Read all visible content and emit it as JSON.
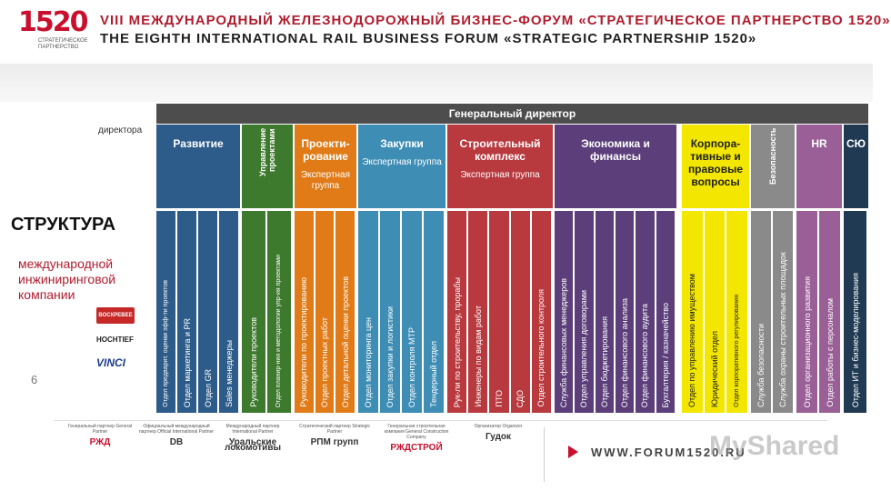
{
  "header": {
    "logo_number": "1520",
    "logo_text": "СТРАТЕГИЧЕСКОЕ ПАРТНЕРСТВО",
    "title_ru": "VIII МЕЖДУНАРОДНЫЙ ЖЕЛЕЗНОДОРОЖНЫЙ БИЗНЕС-ФОРУМ «СТРАТЕГИЧЕСКОЕ ПАРТНЕРСТВО 1520»",
    "title_en": "THE EIGHTH INTERNATIONAL RAIL BUSINESS FORUM «STRATEGIC PARTNERSHIP 1520»"
  },
  "slide": {
    "general_director": "Генеральный директор",
    "directora": "директора",
    "title": "СТРУКТУРА",
    "subtitle": "международной инжиниринговой компании",
    "page_number": "6",
    "company_logos": [
      "ВОСКРЕВЕЕ",
      "HOCHTIEF",
      "VINCI"
    ]
  },
  "departments": [
    {
      "name": "Развитие",
      "sub": "",
      "color": "#2e5c8a",
      "vertical": false,
      "text_color": "#ffffff"
    },
    {
      "name": "Управление проектами",
      "sub": "",
      "color": "#3e7a2e",
      "vertical": true,
      "text_color": "#ffffff"
    },
    {
      "name": "Проекти-рование",
      "sub": "Экспертная группа",
      "color": "#e07b18",
      "vertical": false,
      "text_color": "#ffffff"
    },
    {
      "name": "Закупки",
      "sub": "Экспертная группа",
      "color": "#3d8db5",
      "vertical": false,
      "text_color": "#ffffff"
    },
    {
      "name": "Строительный комплекс",
      "sub": "Экспертная группа",
      "color": "#b83a3f",
      "vertical": false,
      "text_color": "#ffffff"
    },
    {
      "name": "Экономика и финансы",
      "sub": "",
      "color": "#5b3e7a",
      "vertical": false,
      "text_color": "#ffffff"
    },
    {
      "name": "Корпора-тивные и правовые вопросы",
      "sub": "",
      "color": "#f3e600",
      "vertical": false,
      "text_color": "#222222"
    },
    {
      "name": "Безопасность",
      "sub": "",
      "color": "#8a8a8a",
      "vertical": true,
      "text_color": "#ffffff"
    },
    {
      "name": "HR",
      "sub": "",
      "color": "#9a5f97",
      "vertical": false,
      "text_color": "#ffffff"
    },
    {
      "name": "СЮ",
      "sub": "",
      "color": "#1f3a52",
      "vertical": false,
      "text_color": "#ffffff"
    }
  ],
  "units": [
    {
      "label": "Отдел предварит. оценки эфф-ти проектов",
      "color": "#2e5c8a",
      "small": true
    },
    {
      "label": "Отдел маркетинга и PR",
      "color": "#2e5c8a"
    },
    {
      "label": "Отдел GR",
      "color": "#2e5c8a"
    },
    {
      "label": "Sales менеджеры",
      "color": "#2e5c8a"
    },
    {
      "label": "Руководители проектов",
      "color": "#3e7a2e"
    },
    {
      "label": "Отдел планир-ния и методологии упр-ия проектами",
      "color": "#3e7a2e",
      "small": true
    },
    {
      "label": "Руководители по проектированию",
      "color": "#e07b18"
    },
    {
      "label": "Отдел проектных работ",
      "color": "#e07b18"
    },
    {
      "label": "Отдел детальной оценки проектов",
      "color": "#e07b18"
    },
    {
      "label": "Отдел мониторинга цен",
      "color": "#3d8db5"
    },
    {
      "label": "Отдел закупки и логистики",
      "color": "#3d8db5"
    },
    {
      "label": "Отдел контроля МТР",
      "color": "#3d8db5"
    },
    {
      "label": "Тендерный отдел",
      "color": "#3d8db5"
    },
    {
      "label": "Рук-ли по строительству, прорабы",
      "color": "#b83a3f"
    },
    {
      "label": "Инженеры по видам работ",
      "color": "#b83a3f"
    },
    {
      "label": "ПТО",
      "color": "#b83a3f"
    },
    {
      "label": "СДО",
      "color": "#b83a3f"
    },
    {
      "label": "Отдел строительного контроля",
      "color": "#b83a3f"
    },
    {
      "label": "Служба финансовых менеджеров",
      "color": "#5b3e7a"
    },
    {
      "label": "Отдел управления договорами",
      "color": "#5b3e7a"
    },
    {
      "label": "Отдел бюджетирования",
      "color": "#5b3e7a"
    },
    {
      "label": "Отдел финансового анализа",
      "color": "#5b3e7a"
    },
    {
      "label": "Отдел финансового аудита",
      "color": "#5b3e7a"
    },
    {
      "label": "Бухгалтерия / казначейство",
      "color": "#5b3e7a"
    },
    {
      "label": "Отдел по управлению имуществом",
      "color": "#f3e600",
      "text_color": "#222222"
    },
    {
      "label": "Юридический отдел",
      "color": "#f3e600",
      "text_color": "#222222"
    },
    {
      "label": "Отдел корпоративного регулирования",
      "color": "#f3e600",
      "text_color": "#222222",
      "small": true
    },
    {
      "label": "Служба безопасности",
      "color": "#8a8a8a"
    },
    {
      "label": "Служба охраны строительных площадок",
      "color": "#8a8a8a"
    },
    {
      "label": "Отдел организационного развития",
      "color": "#9a5f97"
    },
    {
      "label": "Отдел работы с персоналом",
      "color": "#9a5f97"
    },
    {
      "label": "Отдел ИТ и бизнес-моделирования",
      "color": "#1f3a52"
    }
  ],
  "footer": {
    "partners": [
      {
        "caption": "Генеральный партнер General Partner",
        "logo": "РЖД"
      },
      {
        "caption": "Официальный международный партнер Official International Partner",
        "logo": "DB"
      },
      {
        "caption": "Международный партнер International Partner",
        "logo": "Уральские локомотивы"
      },
      {
        "caption": "Стратегический партнер Strategic Partner",
        "logo": "РПМ групп"
      },
      {
        "caption": "Генеральная строительная компания General Construction Company",
        "logo": "РЖДСТРОЙ"
      },
      {
        "caption": "Организатор Organizer",
        "logo": "Гудок"
      }
    ],
    "url": "WWW.FORUM1520.RU",
    "watermark": "MyShared"
  }
}
